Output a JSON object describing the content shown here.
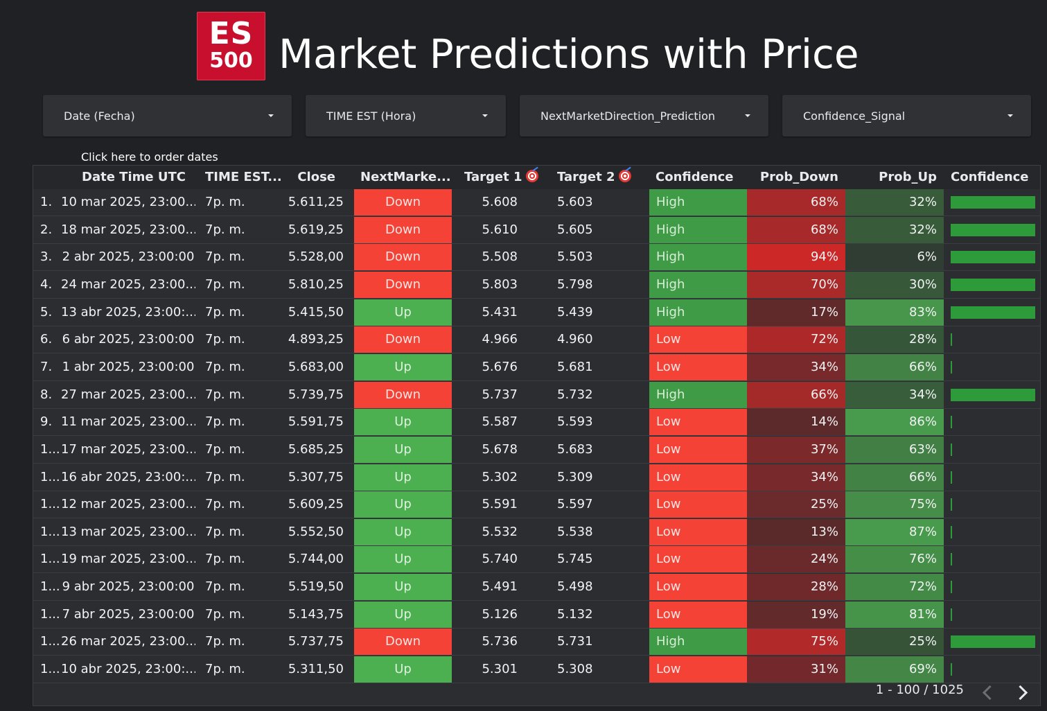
{
  "logo": {
    "line1": "ES",
    "line2": "500"
  },
  "title": "Market Predictions with Price",
  "filters": [
    {
      "label": "Date (Fecha)"
    },
    {
      "label": "TIME EST (Hora)"
    },
    {
      "label": "NextMarketDirection_Prediction"
    },
    {
      "label": "Confidence_Signal"
    }
  ],
  "hint": "Click here to order dates",
  "table": {
    "headers": {
      "date": "Date Time UTC",
      "time": "TIME EST...",
      "close": "Close",
      "next": "NextMarke...",
      "target1": "Target 1",
      "target2": "Target 2",
      "confidence": "Confidence",
      "prob_down": "Prob_Down",
      "prob_up": "Prob_Up",
      "confidence_bar": "Confidence"
    },
    "rows": [
      {
        "idx": "1.",
        "date": "10 mar 2025, 23:00...",
        "time": "7p. m.",
        "close": "5.611,25",
        "dir": "Down",
        "t1": "5.608",
        "t2": "5.603",
        "conf": "High",
        "down": "68%",
        "up": "32%",
        "bar": 1
      },
      {
        "idx": "2.",
        "date": "18 mar 2025, 23:00...",
        "time": "7p. m.",
        "close": "5.619,25",
        "dir": "Down",
        "t1": "5.610",
        "t2": "5.605",
        "conf": "High",
        "down": "68%",
        "up": "32%",
        "bar": 1
      },
      {
        "idx": "3.",
        "date": "2 abr 2025, 23:00:00",
        "time": "7p. m.",
        "close": "5.528,00",
        "dir": "Down",
        "t1": "5.508",
        "t2": "5.503",
        "conf": "High",
        "down": "94%",
        "up": "6%",
        "bar": 1
      },
      {
        "idx": "4.",
        "date": "24 mar 2025, 23:00...",
        "time": "7p. m.",
        "close": "5.810,25",
        "dir": "Down",
        "t1": "5.803",
        "t2": "5.798",
        "conf": "High",
        "down": "70%",
        "up": "30%",
        "bar": 1
      },
      {
        "idx": "5.",
        "date": "13 abr 2025, 23:00:...",
        "time": "7p. m.",
        "close": "5.415,50",
        "dir": "Up",
        "t1": "5.431",
        "t2": "5.439",
        "conf": "High",
        "down": "17%",
        "up": "83%",
        "bar": 1
      },
      {
        "idx": "6.",
        "date": "6 abr 2025, 23:00:00",
        "time": "7p. m.",
        "close": "4.893,25",
        "dir": "Down",
        "t1": "4.966",
        "t2": "4.960",
        "conf": "Low",
        "down": "72%",
        "up": "28%",
        "bar": 0
      },
      {
        "idx": "7.",
        "date": "1 abr 2025, 23:00:00",
        "time": "7p. m.",
        "close": "5.683,00",
        "dir": "Up",
        "t1": "5.676",
        "t2": "5.681",
        "conf": "Low",
        "down": "34%",
        "up": "66%",
        "bar": 0
      },
      {
        "idx": "8.",
        "date": "27 mar 2025, 23:00...",
        "time": "7p. m.",
        "close": "5.739,75",
        "dir": "Down",
        "t1": "5.737",
        "t2": "5.732",
        "conf": "High",
        "down": "66%",
        "up": "34%",
        "bar": 1
      },
      {
        "idx": "9.",
        "date": "11 mar 2025, 23:00...",
        "time": "7p. m.",
        "close": "5.591,75",
        "dir": "Up",
        "t1": "5.587",
        "t2": "5.593",
        "conf": "Low",
        "down": "14%",
        "up": "86%",
        "bar": 0
      },
      {
        "idx": "1...",
        "date": "17 mar 2025, 23:00...",
        "time": "7p. m.",
        "close": "5.685,25",
        "dir": "Up",
        "t1": "5.678",
        "t2": "5.683",
        "conf": "Low",
        "down": "37%",
        "up": "63%",
        "bar": 0
      },
      {
        "idx": "1...",
        "date": "16 abr 2025, 23:00:...",
        "time": "7p. m.",
        "close": "5.307,75",
        "dir": "Up",
        "t1": "5.302",
        "t2": "5.309",
        "conf": "Low",
        "down": "34%",
        "up": "66%",
        "bar": 0
      },
      {
        "idx": "1...",
        "date": "12 mar 2025, 23:00...",
        "time": "7p. m.",
        "close": "5.609,25",
        "dir": "Up",
        "t1": "5.591",
        "t2": "5.597",
        "conf": "Low",
        "down": "25%",
        "up": "75%",
        "bar": 0
      },
      {
        "idx": "1...",
        "date": "13 mar 2025, 23:00...",
        "time": "7p. m.",
        "close": "5.552,50",
        "dir": "Up",
        "t1": "5.532",
        "t2": "5.538",
        "conf": "Low",
        "down": "13%",
        "up": "87%",
        "bar": 0
      },
      {
        "idx": "1...",
        "date": "19 mar 2025, 23:00...",
        "time": "7p. m.",
        "close": "5.744,00",
        "dir": "Up",
        "t1": "5.740",
        "t2": "5.745",
        "conf": "Low",
        "down": "24%",
        "up": "76%",
        "bar": 0
      },
      {
        "idx": "1...",
        "date": "9 abr 2025, 23:00:00",
        "time": "7p. m.",
        "close": "5.519,50",
        "dir": "Up",
        "t1": "5.491",
        "t2": "5.498",
        "conf": "Low",
        "down": "28%",
        "up": "72%",
        "bar": 0
      },
      {
        "idx": "1...",
        "date": "7 abr 2025, 23:00:00",
        "time": "7p. m.",
        "close": "5.143,75",
        "dir": "Up",
        "t1": "5.126",
        "t2": "5.132",
        "conf": "Low",
        "down": "19%",
        "up": "81%",
        "bar": 0
      },
      {
        "idx": "1...",
        "date": "26 mar 2025, 23:00...",
        "time": "7p. m.",
        "close": "5.737,75",
        "dir": "Down",
        "t1": "5.736",
        "t2": "5.731",
        "conf": "High",
        "down": "75%",
        "up": "25%",
        "bar": 1
      },
      {
        "idx": "1...",
        "date": "10 abr 2025, 23:00:...",
        "time": "7p. m.",
        "close": "5.311,50",
        "dir": "Up",
        "t1": "5.301",
        "t2": "5.308",
        "conf": "Low",
        "down": "31%",
        "up": "69%",
        "bar": 0
      }
    ]
  },
  "pagination": {
    "text": "1 - 100 / 1025"
  },
  "colors": {
    "background": "#202124",
    "down_red": "#f44336",
    "up_green": "#4caf50",
    "high_green": "#3f9b46",
    "bar_green": "#2e9b3a"
  }
}
